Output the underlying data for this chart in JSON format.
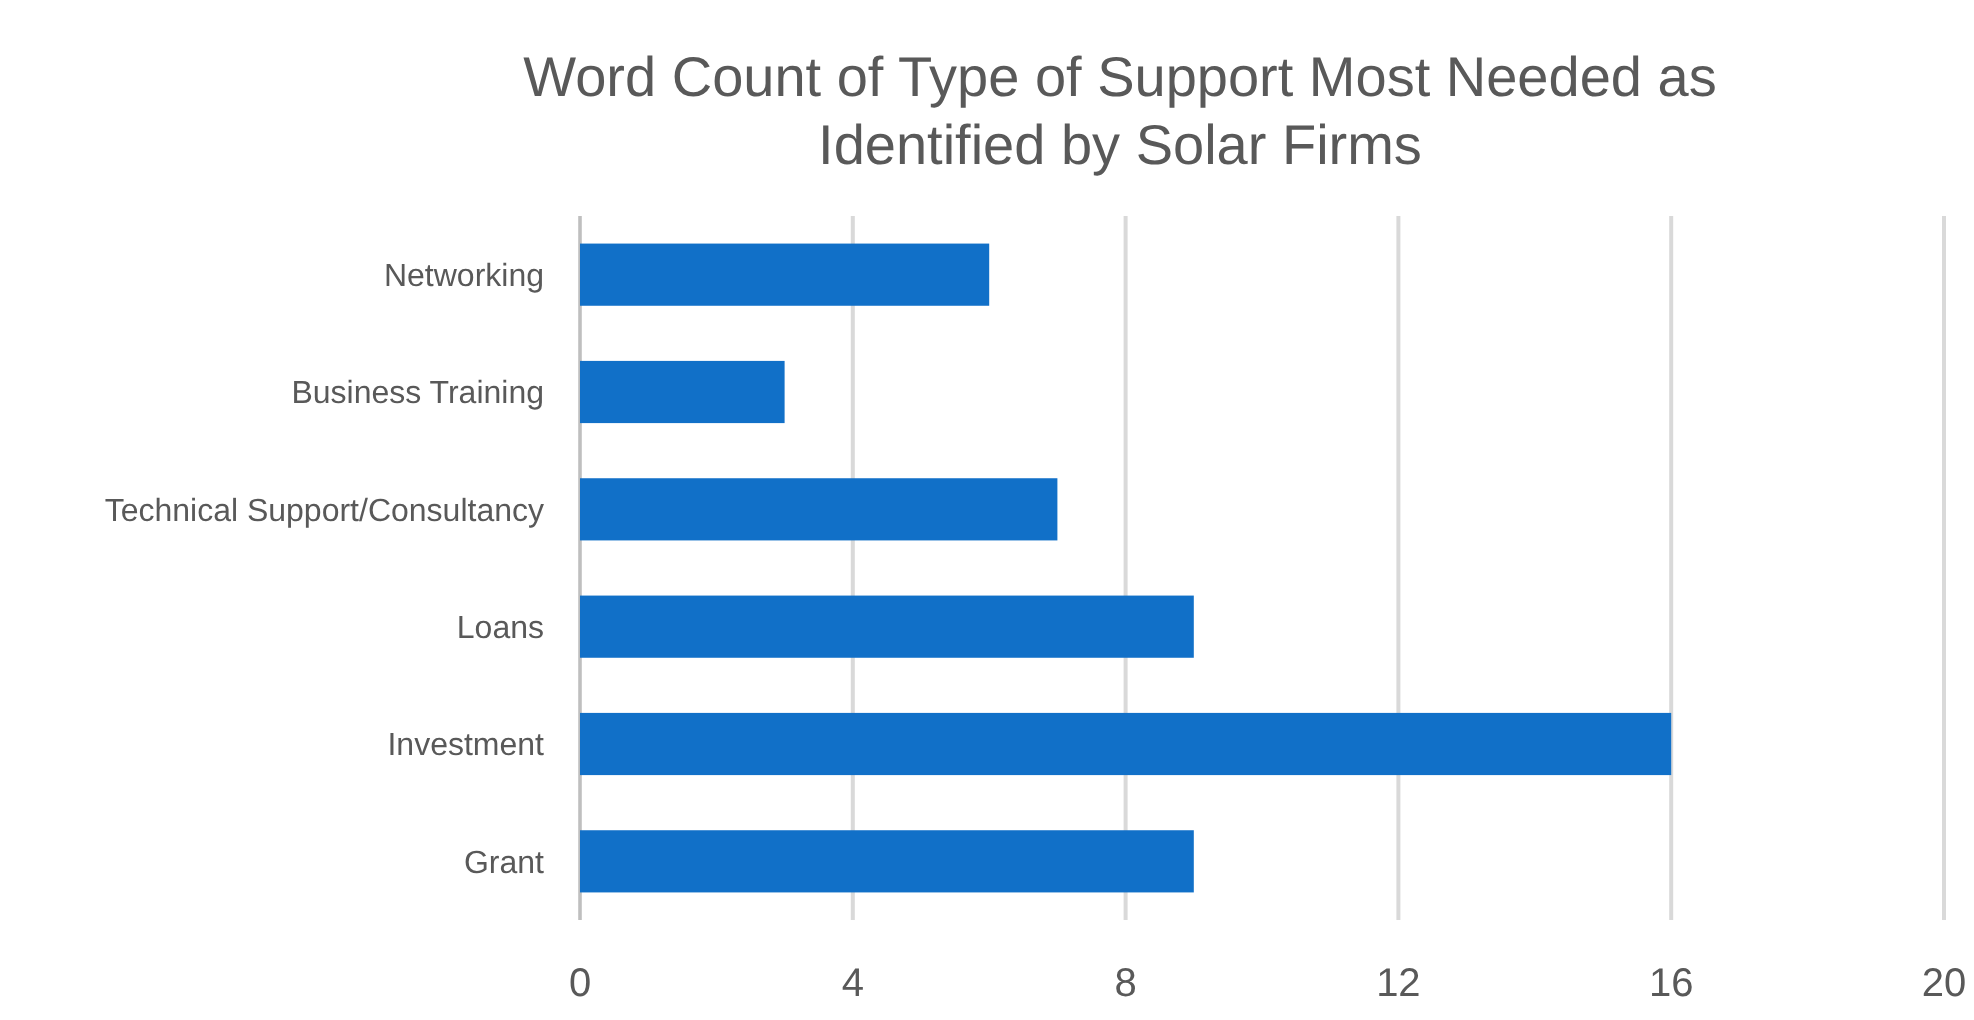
{
  "chart_data": {
    "type": "bar",
    "orientation": "horizontal",
    "title": "Word Count of Type of Support Most Needed as Identified by Solar Firms",
    "categories": [
      "Networking",
      "Business Training",
      "Technical Support/Consultancy",
      "Loans",
      "Investment",
      "Grant"
    ],
    "values": [
      6,
      3,
      7,
      9,
      16,
      9
    ],
    "color": "#1170c8",
    "xlim": [
      0,
      20
    ],
    "xticks": [
      0,
      4,
      8,
      12,
      16,
      20
    ],
    "grid": "x"
  }
}
